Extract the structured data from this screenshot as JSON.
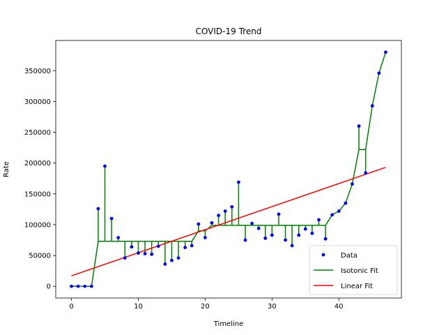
{
  "chart_data": {
    "type": "scatter",
    "title": "COVID-19 Trend",
    "xlabel": "Timeline",
    "ylabel": "Rate",
    "xlim": [
      -2.35,
      49.35
    ],
    "ylim": [
      -19000,
      399000
    ],
    "xticks": [
      0,
      10,
      20,
      30,
      40
    ],
    "xtick_labels": [
      "0",
      "10",
      "20",
      "30",
      "40"
    ],
    "yticks": [
      0,
      50000,
      100000,
      150000,
      200000,
      250000,
      300000,
      350000
    ],
    "ytick_labels": [
      "0",
      "50000",
      "100000",
      "150000",
      "200000",
      "250000",
      "300000",
      "350000"
    ],
    "grid": false,
    "legend_position": "lower-right",
    "series": [
      {
        "name": "Data",
        "kind": "scatter",
        "color": "#0000ff",
        "x": [
          0,
          1,
          2,
          3,
          4,
          5,
          6,
          7,
          8,
          9,
          10,
          11,
          12,
          13,
          14,
          15,
          16,
          17,
          18,
          19,
          20,
          21,
          22,
          23,
          24,
          25,
          26,
          27,
          28,
          29,
          30,
          31,
          32,
          33,
          34,
          35,
          36,
          37,
          38,
          39,
          40,
          41,
          42,
          43,
          44,
          45,
          46,
          47
        ],
        "y": [
          0,
          0,
          0,
          0,
          126000,
          195000,
          110000,
          79000,
          46000,
          64000,
          54000,
          53000,
          52000,
          65000,
          36000,
          42000,
          46000,
          63000,
          66000,
          101000,
          79000,
          103000,
          115000,
          122000,
          129000,
          169000,
          75000,
          102000,
          94000,
          78000,
          83000,
          117000,
          75000,
          66000,
          83000,
          93000,
          86000,
          108000,
          77000,
          116000,
          122000,
          135000,
          166000,
          260000,
          184000,
          293000,
          346000,
          380000
        ]
      },
      {
        "name": "Isotonic Fit",
        "kind": "line",
        "color": "#008000",
        "x": [
          0,
          1,
          2,
          3,
          4,
          5,
          6,
          7,
          8,
          9,
          10,
          11,
          12,
          13,
          14,
          15,
          16,
          17,
          18,
          19,
          20,
          21,
          22,
          23,
          24,
          25,
          26,
          27,
          28,
          29,
          30,
          31,
          32,
          33,
          34,
          35,
          36,
          37,
          38,
          39,
          40,
          41,
          42,
          43,
          44,
          45,
          46,
          47
        ],
        "y": [
          0,
          0,
          0,
          0,
          73000,
          73000,
          73000,
          73000,
          73000,
          73000,
          73000,
          73000,
          73000,
          73000,
          73000,
          73000,
          73000,
          73000,
          73000,
          90000,
          90000,
          99000,
          99000,
          99000,
          99000,
          99000,
          99000,
          99000,
          99000,
          99000,
          99000,
          99000,
          99000,
          99000,
          99000,
          99000,
          99000,
          99000,
          99000,
          116000,
          122000,
          135000,
          166000,
          222000,
          222000,
          293000,
          346000,
          380000
        ]
      },
      {
        "name": "Linear Fit",
        "kind": "line",
        "color": "#ff0000",
        "x": [
          0,
          47
        ],
        "y": [
          17000,
          193000
        ]
      }
    ]
  }
}
